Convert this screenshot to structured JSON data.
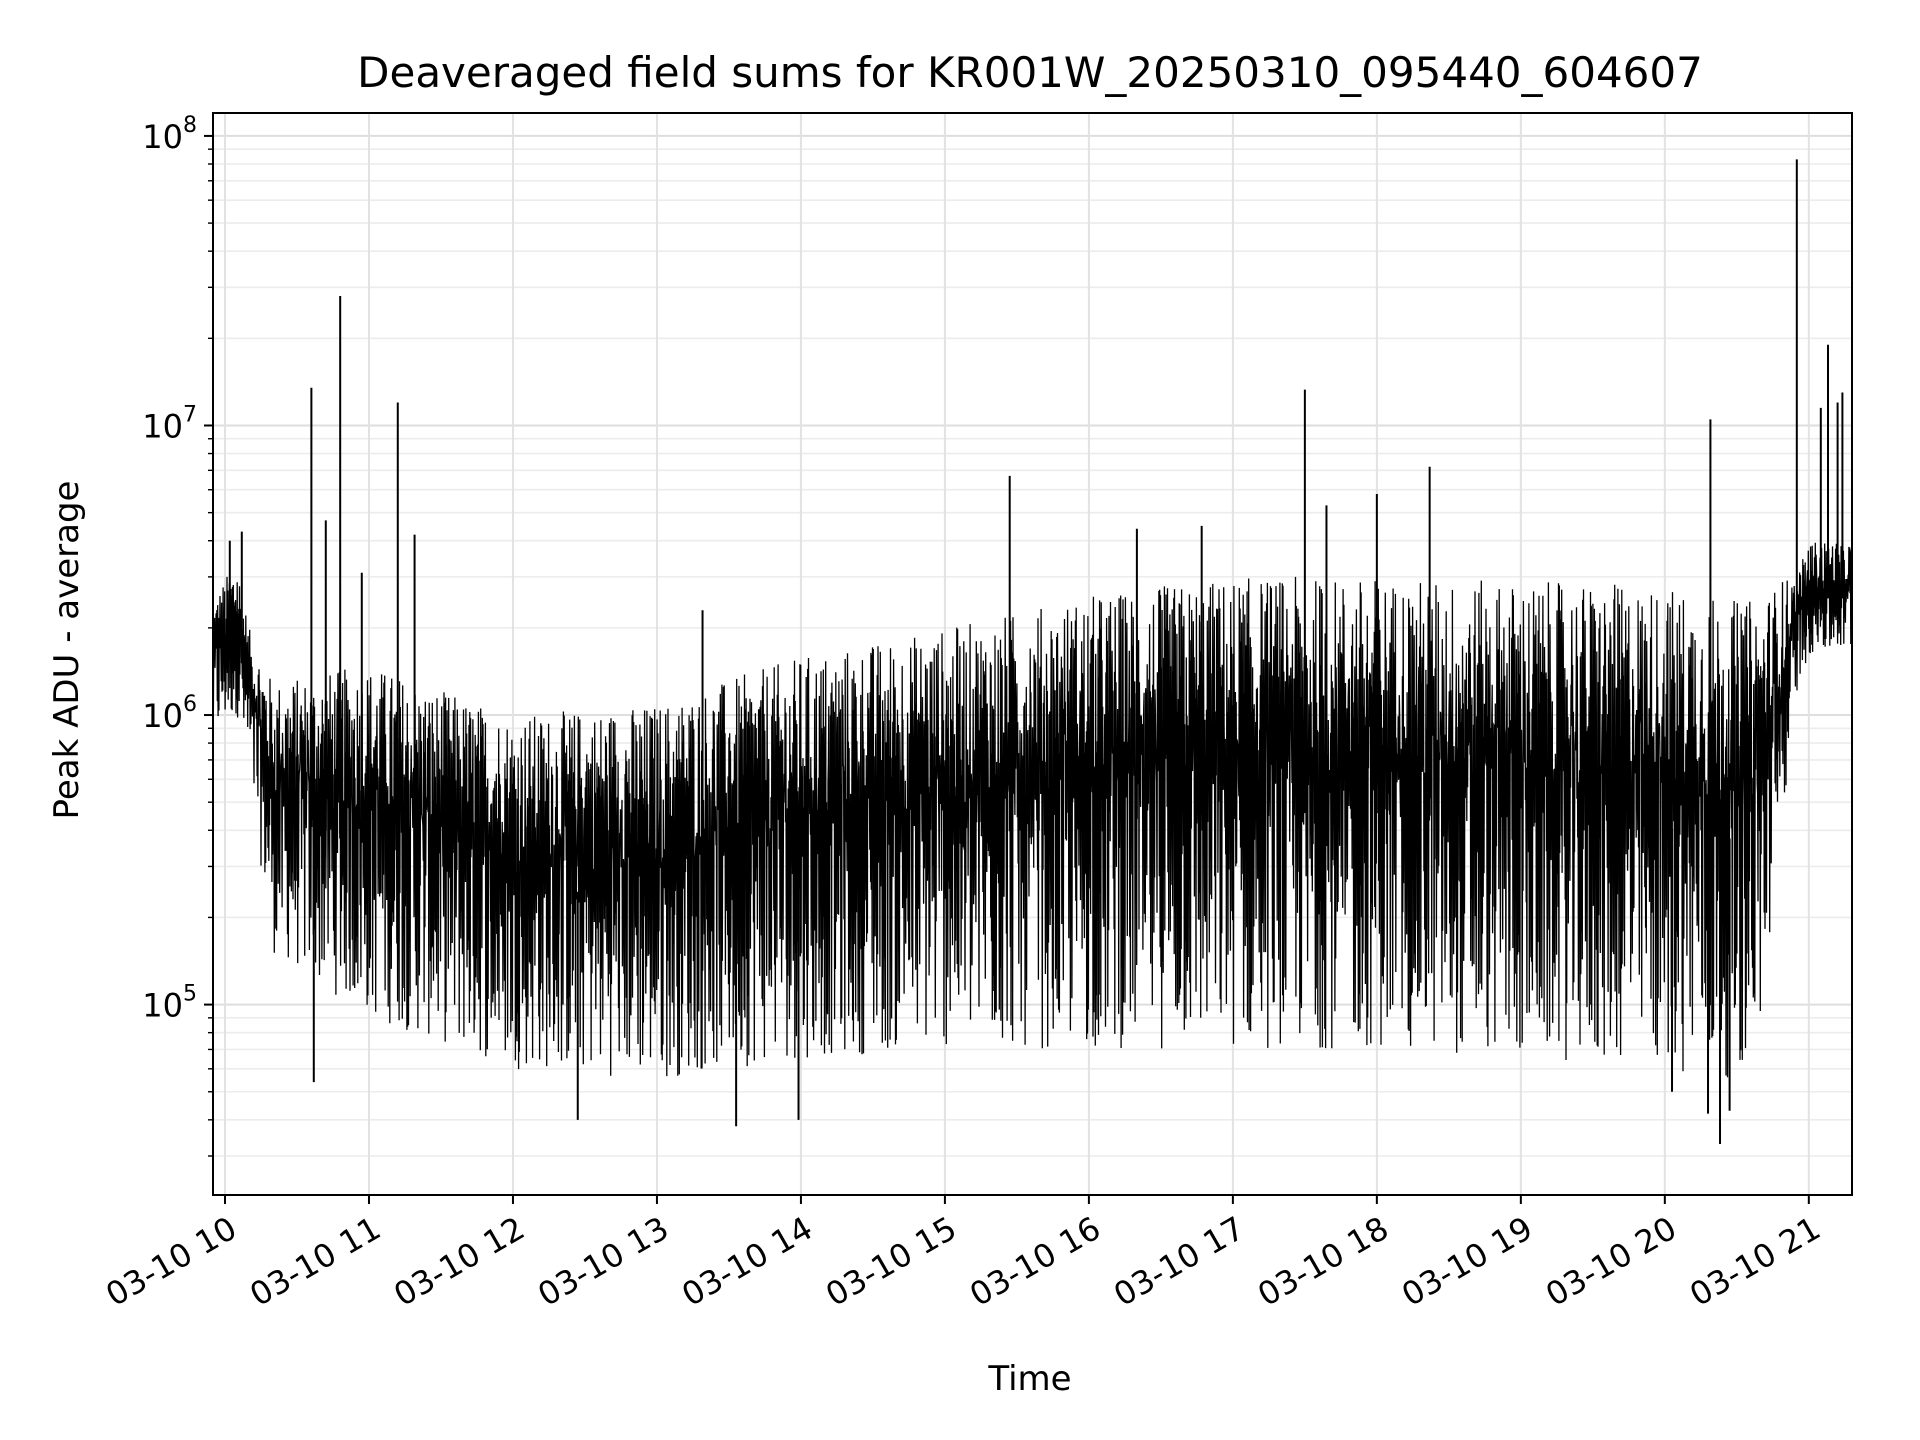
{
  "chart_data": {
    "type": "line",
    "title": "Deaveraged field sums for KR001W_20250310_095440_604607",
    "xlabel": "Time",
    "ylabel": "Peak ADU - average",
    "yscale": "log",
    "ylim": [
      22000,
      120000000
    ],
    "xlim": [
      "2025-03-10 09:55",
      "2025-03-10 21:18"
    ],
    "grid": true,
    "line_color": "#000000",
    "x_ticks": [
      {
        "x": "2025-03-10 10:00",
        "label": "03-10 10"
      },
      {
        "x": "2025-03-10 11:00",
        "label": "03-10 11"
      },
      {
        "x": "2025-03-10 12:00",
        "label": "03-10 12"
      },
      {
        "x": "2025-03-10 13:00",
        "label": "03-10 13"
      },
      {
        "x": "2025-03-10 14:00",
        "label": "03-10 14"
      },
      {
        "x": "2025-03-10 15:00",
        "label": "03-10 15"
      },
      {
        "x": "2025-03-10 16:00",
        "label": "03-10 16"
      },
      {
        "x": "2025-03-10 17:00",
        "label": "03-10 17"
      },
      {
        "x": "2025-03-10 18:00",
        "label": "03-10 18"
      },
      {
        "x": "2025-03-10 19:00",
        "label": "03-10 19"
      },
      {
        "x": "2025-03-10 20:00",
        "label": "03-10 20"
      },
      {
        "x": "2025-03-10 21:00",
        "label": "03-10 21"
      }
    ],
    "y_ticks": [
      {
        "value": 100000,
        "base": "10",
        "exp": "5"
      },
      {
        "value": 1000000,
        "base": "10",
        "exp": "6"
      },
      {
        "value": 10000000,
        "base": "10",
        "exp": "7"
      },
      {
        "value": 100000000,
        "base": "10",
        "exp": "8"
      }
    ],
    "series": [
      {
        "envelope": [
          {
            "x": "2025-03-10 09:55",
            "low": 800000,
            "high": 2500000
          },
          {
            "x": "2025-03-10 10:05",
            "low": 1000000,
            "high": 3500000
          },
          {
            "x": "2025-03-10 10:10",
            "low": 600000,
            "high": 2000000
          },
          {
            "x": "2025-03-10 10:20",
            "low": 150000,
            "high": 1300000
          },
          {
            "x": "2025-03-10 11:00",
            "low": 90000,
            "high": 1500000
          },
          {
            "x": "2025-03-10 12:00",
            "low": 60000,
            "high": 1000000
          },
          {
            "x": "2025-03-10 13:00",
            "low": 55000,
            "high": 1100000
          },
          {
            "x": "2025-03-10 14:00",
            "low": 65000,
            "high": 1600000
          },
          {
            "x": "2025-03-10 15:00",
            "low": 70000,
            "high": 2000000
          },
          {
            "x": "2025-03-10 16:00",
            "low": 70000,
            "high": 2600000
          },
          {
            "x": "2025-03-10 17:00",
            "low": 70000,
            "high": 3000000
          },
          {
            "x": "2025-03-10 18:00",
            "low": 70000,
            "high": 3000000
          },
          {
            "x": "2025-03-10 19:00",
            "low": 65000,
            "high": 2900000
          },
          {
            "x": "2025-03-10 20:00",
            "low": 60000,
            "high": 2800000
          },
          {
            "x": "2025-03-10 20:30",
            "low": 55000,
            "high": 2500000
          },
          {
            "x": "2025-03-10 20:40",
            "low": 80000,
            "high": 2500000
          },
          {
            "x": "2025-03-10 20:50",
            "low": 500000,
            "high": 3000000
          },
          {
            "x": "2025-03-10 20:55",
            "low": 1200000,
            "high": 3000000
          },
          {
            "x": "2025-03-10 21:00",
            "low": 1600000,
            "high": 4000000
          },
          {
            "x": "2025-03-10 21:18",
            "low": 1600000,
            "high": 4000000
          }
        ],
        "spikes": [
          {
            "x": "2025-03-10 10:02",
            "value": 4000000
          },
          {
            "x": "2025-03-10 10:07",
            "value": 4300000
          },
          {
            "x": "2025-03-10 10:36",
            "value": 13500000
          },
          {
            "x": "2025-03-10 10:42",
            "value": 4700000
          },
          {
            "x": "2025-03-10 10:48",
            "value": 28000000
          },
          {
            "x": "2025-03-10 10:57",
            "value": 3100000
          },
          {
            "x": "2025-03-10 11:12",
            "value": 12000000
          },
          {
            "x": "2025-03-10 11:19",
            "value": 4200000
          },
          {
            "x": "2025-03-10 13:19",
            "value": 2300000
          },
          {
            "x": "2025-03-10 15:27",
            "value": 6700000
          },
          {
            "x": "2025-03-10 16:20",
            "value": 4400000
          },
          {
            "x": "2025-03-10 16:47",
            "value": 4500000
          },
          {
            "x": "2025-03-10 17:30",
            "value": 13300000
          },
          {
            "x": "2025-03-10 17:39",
            "value": 5300000
          },
          {
            "x": "2025-03-10 18:00",
            "value": 5800000
          },
          {
            "x": "2025-03-10 18:22",
            "value": 7200000
          },
          {
            "x": "2025-03-10 20:19",
            "value": 10500000
          },
          {
            "x": "2025-03-10 20:55",
            "value": 83000000
          },
          {
            "x": "2025-03-10 21:05",
            "value": 11500000
          },
          {
            "x": "2025-03-10 21:08",
            "value": 19000000
          },
          {
            "x": "2025-03-10 21:12",
            "value": 12000000
          },
          {
            "x": "2025-03-10 21:14",
            "value": 13000000
          }
        ],
        "dips": [
          {
            "x": "2025-03-10 10:37",
            "value": 54000
          },
          {
            "x": "2025-03-10 12:27",
            "value": 40000
          },
          {
            "x": "2025-03-10 13:33",
            "value": 38000
          },
          {
            "x": "2025-03-10 13:59",
            "value": 40000
          },
          {
            "x": "2025-03-10 20:03",
            "value": 50000
          },
          {
            "x": "2025-03-10 20:18",
            "value": 42000
          },
          {
            "x": "2025-03-10 20:23",
            "value": 33000
          },
          {
            "x": "2025-03-10 20:27",
            "value": 43000
          }
        ]
      }
    ]
  }
}
